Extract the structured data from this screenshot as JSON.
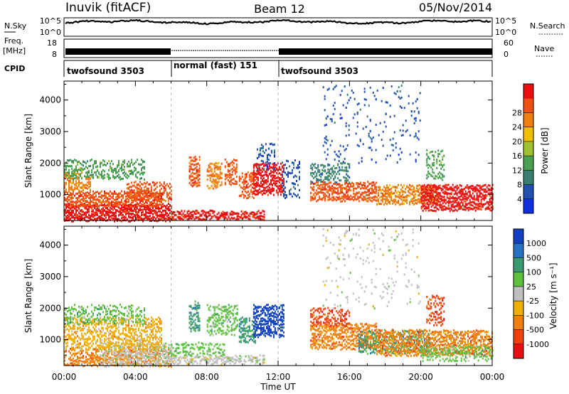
{
  "header": {
    "station": "Inuvik (fitACF)",
    "beam": "Beam 12",
    "date": "05/Nov/2014"
  },
  "summary": {
    "nsky_label": "N.Sky",
    "nsky_ticks": [
      "10^5",
      "10^0"
    ],
    "nsearch_label": "N.Search",
    "nsearch_ticks": [
      "10^5",
      "10^0"
    ],
    "freq_label": "Freq.",
    "freq_unit": "[MHz]",
    "freq_ticks": [
      "18",
      "8"
    ],
    "nave_label": "Nave",
    "nave_ticks": [
      "60",
      "0"
    ],
    "cpid_label": "CPID",
    "cpid_segments": [
      {
        "label": "twofsound 3503",
        "start": 0,
        "end": 6
      },
      {
        "label": "normal (fast) 151",
        "start": 6,
        "end": 12
      },
      {
        "label": "twofsound 3503",
        "start": 12,
        "end": 24
      }
    ]
  },
  "chart_data": [
    {
      "type": "heatmap",
      "name": "power",
      "xlabel": "Time UT",
      "ylabel": "Slant Range [km]",
      "xlim": [
        0,
        24
      ],
      "ylim": [
        180,
        4600
      ],
      "y_ticks": [
        "1000",
        "2000",
        "3000",
        "4000"
      ],
      "colorbar": {
        "label": "Power [dB]",
        "ticks": [
          "4",
          "8",
          "12",
          "16",
          "20",
          "24",
          "28"
        ],
        "colors": [
          "#1030e0",
          "#2050b0",
          "#3a8070",
          "#4aa050",
          "#a0c030",
          "#f0c000",
          "#f08010",
          "#f05010",
          "#e81010"
        ]
      },
      "blobs": [
        {
          "t0": 0.0,
          "t1": 6.0,
          "r0": 180,
          "r1": 700,
          "c": "#e81010",
          "d": 0.9
        },
        {
          "t0": 6.0,
          "t1": 11.2,
          "r0": 230,
          "r1": 480,
          "c": "#e81010",
          "d": 0.85
        },
        {
          "t0": 0.0,
          "t1": 5.5,
          "r0": 650,
          "r1": 1100,
          "c": "#f05010",
          "d": 0.8
        },
        {
          "t0": 0.0,
          "t1": 1.5,
          "r0": 1100,
          "r1": 1700,
          "c": "#f08010",
          "d": 0.7
        },
        {
          "t0": 0.0,
          "t1": 4.5,
          "r0": 1500,
          "r1": 2100,
          "c": "#4aa050",
          "d": 0.5
        },
        {
          "t0": 3.5,
          "t1": 6.0,
          "r0": 800,
          "r1": 1400,
          "c": "#f05010",
          "d": 0.6
        },
        {
          "t0": 7.0,
          "t1": 7.6,
          "r0": 1300,
          "r1": 2200,
          "c": "#f05010",
          "d": 0.7
        },
        {
          "t0": 8.0,
          "t1": 8.8,
          "r0": 1200,
          "r1": 2000,
          "c": "#f08010",
          "d": 0.65
        },
        {
          "t0": 9.0,
          "t1": 9.7,
          "r0": 1300,
          "r1": 2100,
          "c": "#f05010",
          "d": 0.6
        },
        {
          "t0": 9.8,
          "t1": 10.7,
          "r0": 900,
          "r1": 1700,
          "c": "#f05010",
          "d": 0.6
        },
        {
          "t0": 10.6,
          "t1": 12.3,
          "r0": 1000,
          "r1": 2000,
          "c": "#e81010",
          "d": 0.8
        },
        {
          "t0": 10.8,
          "t1": 11.8,
          "r0": 1800,
          "r1": 2600,
          "c": "#2050b0",
          "d": 0.35
        },
        {
          "t0": 12.2,
          "t1": 13.2,
          "r0": 900,
          "r1": 2100,
          "c": "#2050b0",
          "d": 0.3
        },
        {
          "t0": 13.8,
          "t1": 17.5,
          "r0": 800,
          "r1": 1400,
          "c": "#f05010",
          "d": 0.75
        },
        {
          "t0": 13.8,
          "t1": 16.0,
          "r0": 1400,
          "r1": 2000,
          "c": "#3a8070",
          "d": 0.5
        },
        {
          "t0": 17.5,
          "t1": 21.0,
          "r0": 700,
          "r1": 1300,
          "c": "#f08010",
          "d": 0.7
        },
        {
          "t0": 20.0,
          "t1": 24.0,
          "r0": 500,
          "r1": 1300,
          "c": "#e81010",
          "d": 0.85
        },
        {
          "t0": 20.3,
          "t1": 21.3,
          "r0": 1500,
          "r1": 2400,
          "c": "#4aa050",
          "d": 0.45
        },
        {
          "t0": 14.5,
          "t1": 20.0,
          "r0": 2000,
          "r1": 4500,
          "c": "#2050b0",
          "d": 0.08
        }
      ]
    },
    {
      "type": "heatmap",
      "name": "velocity",
      "xlabel": "Time UT",
      "ylabel": "Slant Range [km]",
      "xlim": [
        0,
        24
      ],
      "ylim": [
        180,
        4600
      ],
      "y_ticks": [
        "1000",
        "2000",
        "3000",
        "4000"
      ],
      "x_ticks": [
        "00:00",
        "04:00",
        "08:00",
        "12:00",
        "16:00",
        "20:00",
        "00:00"
      ],
      "colorbar": {
        "label": "Velocity [m s⁻¹]",
        "ticks": [
          "1000",
          "500",
          "100",
          "25",
          "-25",
          "-100",
          "-500",
          "-1000"
        ],
        "colors": [
          "#1040c0",
          "#2870c0",
          "#3a9a70",
          "#60c040",
          "#c0c0c0",
          "#f0b000",
          "#f08010",
          "#f04010",
          "#e81010"
        ]
      },
      "blobs": [
        {
          "t0": 0.0,
          "t1": 6.0,
          "r0": 180,
          "r1": 700,
          "c": "#f08010",
          "d": 0.65
        },
        {
          "t0": 2.0,
          "t1": 6.0,
          "r0": 200,
          "r1": 900,
          "c": "#c0c0c0",
          "d": 0.7
        },
        {
          "t0": 0.0,
          "t1": 5.5,
          "r0": 700,
          "r1": 1700,
          "c": "#f0b000",
          "d": 0.6
        },
        {
          "t0": 0.0,
          "t1": 4.5,
          "r0": 1500,
          "r1": 2100,
          "c": "#60c040",
          "d": 0.45
        },
        {
          "t0": 6.0,
          "t1": 11.2,
          "r0": 230,
          "r1": 500,
          "c": "#c0c0c0",
          "d": 0.75
        },
        {
          "t0": 6.0,
          "t1": 9.0,
          "r0": 500,
          "r1": 900,
          "c": "#60c040",
          "d": 0.5
        },
        {
          "t0": 7.0,
          "t1": 7.6,
          "r0": 1300,
          "r1": 2200,
          "c": "#3a9a70",
          "d": 0.6
        },
        {
          "t0": 8.0,
          "t1": 9.7,
          "r0": 1200,
          "r1": 2100,
          "c": "#60c040",
          "d": 0.55
        },
        {
          "t0": 9.8,
          "t1": 10.7,
          "r0": 900,
          "r1": 1700,
          "c": "#3a9a70",
          "d": 0.55
        },
        {
          "t0": 10.6,
          "t1": 12.3,
          "r0": 1100,
          "r1": 2100,
          "c": "#1040c0",
          "d": 0.7
        },
        {
          "t0": 13.8,
          "t1": 17.5,
          "r0": 700,
          "r1": 1500,
          "c": "#f08010",
          "d": 0.75
        },
        {
          "t0": 13.8,
          "t1": 16.0,
          "r0": 1400,
          "r1": 2000,
          "c": "#f04010",
          "d": 0.45
        },
        {
          "t0": 16.5,
          "t1": 20.5,
          "r0": 600,
          "r1": 1300,
          "c": "#3a9a70",
          "d": 0.5
        },
        {
          "t0": 17.5,
          "t1": 24.0,
          "r0": 500,
          "r1": 1300,
          "c": "#f08010",
          "d": 0.7
        },
        {
          "t0": 20.0,
          "t1": 24.0,
          "r0": 350,
          "r1": 800,
          "c": "#60c040",
          "d": 0.45
        },
        {
          "t0": 20.3,
          "t1": 21.3,
          "r0": 1500,
          "r1": 2400,
          "c": "#f04010",
          "d": 0.45
        },
        {
          "t0": 14.5,
          "t1": 20.0,
          "r0": 2000,
          "r1": 4500,
          "c": "#c0c0c0",
          "d": 0.07
        }
      ]
    }
  ]
}
